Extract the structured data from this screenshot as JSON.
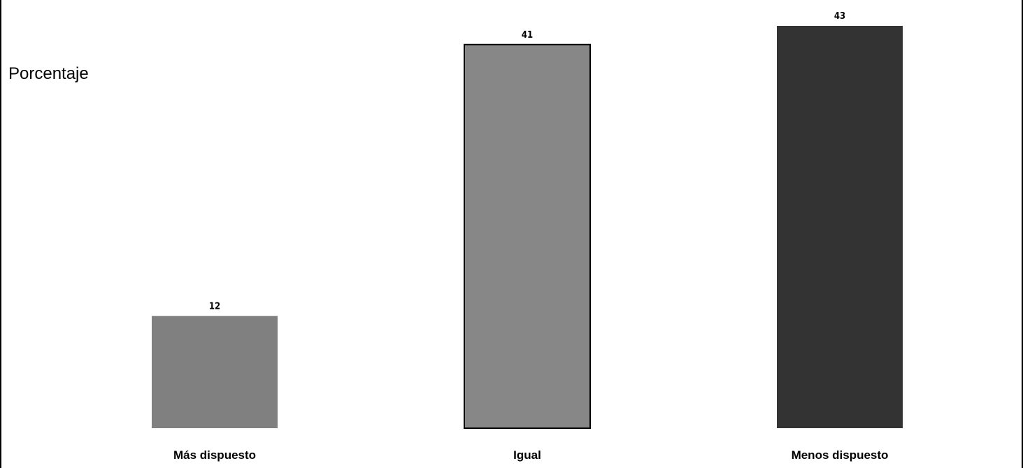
{
  "chart_data": {
    "type": "bar",
    "title": "",
    "xlabel": "",
    "ylabel": "Porcentaje",
    "categories": [
      "Más dispuesto",
      "Igual",
      "Menos dispuesto"
    ],
    "values": [
      12,
      41,
      43
    ],
    "value_labels": [
      "12",
      "41",
      "43"
    ],
    "bar_colors": [
      "#808080",
      "#878787",
      "#333333"
    ],
    "bar_outline": [
      false,
      true,
      false
    ],
    "ylim": [
      0,
      43
    ],
    "grid": false,
    "legend": "none"
  }
}
